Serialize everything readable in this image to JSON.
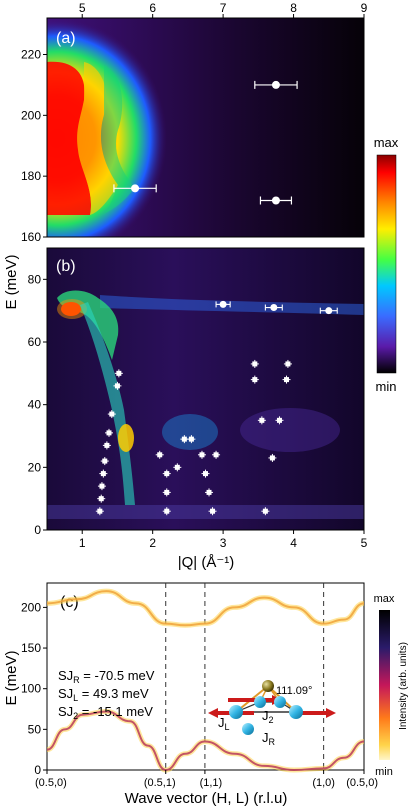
{
  "colors": {
    "background": "#ffffff",
    "heatmap_low": "#000000",
    "heatmap_high": "#ff0000",
    "point": "#ffffff",
    "dispersion": "#ffd44a",
    "dashed": "#333333"
  },
  "chart_data": [
    {
      "type": "heatmap",
      "panel": "(a)",
      "top_axis_ticks": [
        "5",
        "6",
        "7",
        "8",
        "9"
      ],
      "y_ticks": [
        "160",
        "180",
        "200",
        "220"
      ],
      "ylim": [
        160,
        232
      ],
      "x_ticks_top_values": [
        5,
        6,
        7,
        8,
        9
      ],
      "xlim": [
        4.5,
        9
      ],
      "points": [
        {
          "x": 5.75,
          "y": 176,
          "xerr": 0.3
        },
        {
          "x": 7.75,
          "y": 210,
          "xerr": 0.3
        },
        {
          "x": 7.75,
          "y": 172,
          "xerr": 0.22
        }
      ]
    },
    {
      "type": "heatmap",
      "panel": "(b)",
      "xlabel": "|Q| (Å⁻¹)",
      "ylabel": "E (meV)",
      "x_ticks": [
        "1",
        "2",
        "3",
        "4",
        "5"
      ],
      "y_ticks": [
        "0",
        "20",
        "40",
        "60",
        "80"
      ],
      "xlim": [
        0.5,
        5
      ],
      "ylim": [
        0,
        90
      ],
      "colorbar": {
        "top_label": "max",
        "bottom_label": "min"
      },
      "points": [
        {
          "x": 3.0,
          "y": 72,
          "xerr": 0.1
        },
        {
          "x": 3.72,
          "y": 71,
          "xerr": 0.12
        },
        {
          "x": 4.5,
          "y": 70,
          "xerr": 0.12
        },
        {
          "x": 1.25,
          "y": 6
        },
        {
          "x": 1.27,
          "y": 10
        },
        {
          "x": 1.28,
          "y": 14
        },
        {
          "x": 1.3,
          "y": 18
        },
        {
          "x": 1.32,
          "y": 22
        },
        {
          "x": 1.35,
          "y": 27
        },
        {
          "x": 1.38,
          "y": 31
        },
        {
          "x": 1.42,
          "y": 37
        },
        {
          "x": 1.5,
          "y": 46
        },
        {
          "x": 1.52,
          "y": 50
        },
        {
          "x": 2.1,
          "y": 24
        },
        {
          "x": 2.2,
          "y": 18
        },
        {
          "x": 2.2,
          "y": 12
        },
        {
          "x": 2.2,
          "y": 6
        },
        {
          "x": 2.35,
          "y": 20
        },
        {
          "x": 2.45,
          "y": 29
        },
        {
          "x": 2.55,
          "y": 29
        },
        {
          "x": 2.7,
          "y": 24
        },
        {
          "x": 2.75,
          "y": 18
        },
        {
          "x": 2.8,
          "y": 12
        },
        {
          "x": 2.85,
          "y": 6
        },
        {
          "x": 2.9,
          "y": 24
        },
        {
          "x": 3.45,
          "y": 53
        },
        {
          "x": 3.45,
          "y": 48
        },
        {
          "x": 3.55,
          "y": 35
        },
        {
          "x": 3.6,
          "y": 6
        },
        {
          "x": 3.7,
          "y": 23
        },
        {
          "x": 3.8,
          "y": 35
        },
        {
          "x": 3.9,
          "y": 48
        },
        {
          "x": 3.92,
          "y": 53
        }
      ]
    },
    {
      "type": "line",
      "panel": "(c)",
      "xlabel": "Wave vector (H, L) (r.l.u)",
      "ylabel": "E (meV)",
      "y_ticks": [
        "0",
        "50",
        "100",
        "150",
        "200"
      ],
      "ylim": [
        0,
        230
      ],
      "x_tick_labels": [
        "(0.5,0)",
        "(0.5,1)",
        "(1,1)",
        "(1,0)",
        "(0.5,0)"
      ],
      "x_tick_positions": [
        0,
        1,
        1.33,
        2.33,
        2.67
      ],
      "dashed_at": [
        1,
        1.33,
        2.33
      ],
      "colorbar": {
        "top_label": "max",
        "bottom_label": "min",
        "label": "Intensity (arb. units)"
      },
      "annotations": [
        {
          "label": "SJ",
          "sub": "R",
          "value": " = -70.5 meV"
        },
        {
          "label": "SJ",
          "sub": "L",
          "value": " =  49.3 meV"
        },
        {
          "label": "SJ",
          "sub": "2",
          "value": " = -15.1 meV"
        }
      ],
      "inset_labels": {
        "angle": "111.09°",
        "jl": "J",
        "jl_sub": "L",
        "j2": "J",
        "j2_sub": "2",
        "jr": "J",
        "jr_sub": "R"
      },
      "series": [
        {
          "x": [
            0,
            0.25,
            0.5,
            0.75,
            1.0,
            1.165,
            1.33,
            1.58,
            1.83,
            2.08,
            2.33,
            2.5,
            2.67
          ],
          "values": [
            205,
            210,
            220,
            205,
            180,
            178,
            180,
            200,
            212,
            200,
            180,
            185,
            205
          ]
        },
        {
          "x": [
            0,
            0.15,
            0.3,
            0.5,
            0.7,
            0.85,
            1.0,
            1.165,
            1.33,
            1.58,
            1.83,
            2.08,
            2.33,
            2.5,
            2.67
          ],
          "values": [
            25,
            50,
            68,
            72,
            60,
            30,
            0,
            20,
            35,
            20,
            5,
            0,
            2,
            15,
            35
          ]
        }
      ]
    }
  ]
}
